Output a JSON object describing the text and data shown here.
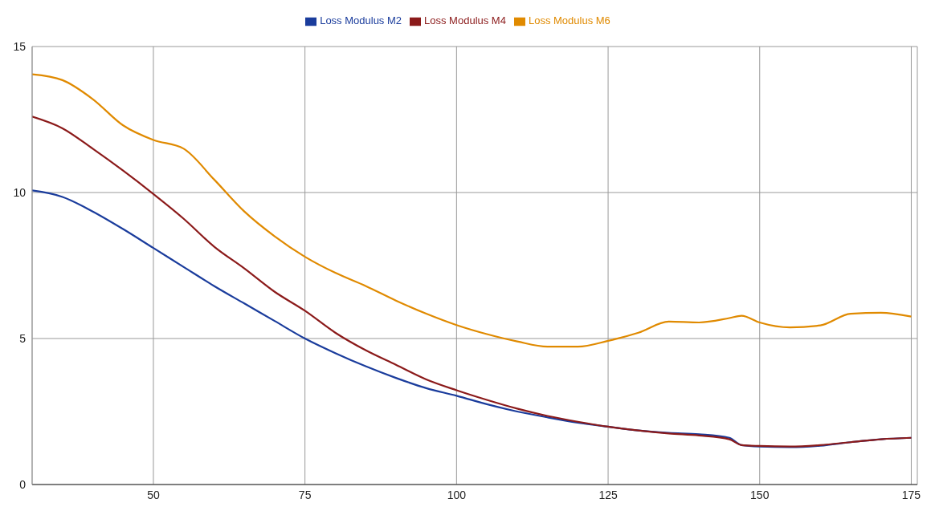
{
  "chart_data": {
    "type": "line",
    "x": [
      30,
      35,
      40,
      45,
      50,
      55,
      60,
      65,
      70,
      75,
      80,
      85,
      90,
      95,
      100,
      105,
      110,
      115,
      120,
      125,
      130,
      135,
      140,
      145,
      147,
      150,
      155,
      160,
      165,
      170,
      175
    ],
    "series": [
      {
        "name": "Loss Modulus M2",
        "color": "#1a3c9c",
        "values": [
          10.07,
          9.85,
          9.35,
          8.75,
          8.1,
          7.45,
          6.8,
          6.2,
          5.6,
          5.0,
          4.5,
          4.05,
          3.65,
          3.3,
          3.04,
          2.75,
          2.5,
          2.3,
          2.12,
          1.98,
          1.85,
          1.77,
          1.72,
          1.6,
          1.35,
          1.3,
          1.28,
          1.33,
          1.45,
          1.55,
          1.6
        ]
      },
      {
        "name": "Loss Modulus M4",
        "color": "#8b1a1a",
        "values": [
          12.6,
          12.2,
          11.5,
          10.75,
          9.95,
          9.1,
          8.15,
          7.4,
          6.6,
          5.95,
          5.2,
          4.6,
          4.1,
          3.6,
          3.23,
          2.9,
          2.6,
          2.35,
          2.15,
          1.98,
          1.85,
          1.75,
          1.68,
          1.55,
          1.35,
          1.32,
          1.3,
          1.35,
          1.45,
          1.55,
          1.6
        ]
      },
      {
        "name": "Loss Modulus M6",
        "color": "#e08a00",
        "values": [
          14.05,
          13.85,
          13.2,
          12.3,
          11.8,
          11.5,
          10.45,
          9.35,
          8.5,
          7.8,
          7.25,
          6.8,
          6.3,
          5.85,
          5.46,
          5.15,
          4.9,
          4.72,
          4.72,
          4.92,
          5.2,
          5.58,
          5.55,
          5.7,
          5.78,
          5.55,
          5.38,
          5.45,
          5.85,
          5.88,
          5.75
        ]
      }
    ],
    "xlim": [
      30,
      176
    ],
    "xticks": [
      50,
      75,
      100,
      125,
      150,
      175
    ],
    "ylim": [
      0,
      15
    ],
    "yticks": [
      0,
      5,
      10,
      15
    ],
    "grid": true,
    "legend": "top",
    "marker": "none",
    "line_style": "solid"
  }
}
